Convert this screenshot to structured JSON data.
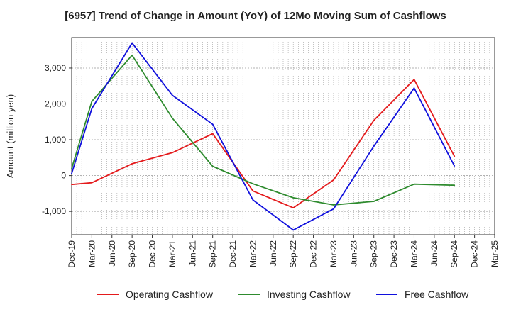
{
  "chart_data": {
    "type": "line",
    "title": "[6957]  Trend of Change in Amount (YoY) of 12Mo Moving Sum of Cashflows",
    "xlabel": "",
    "ylabel": "Amount (million yen)",
    "ylim": [
      -1650,
      3850
    ],
    "yticks": [
      -1000,
      0,
      1000,
      2000,
      3000
    ],
    "ytick_labels": [
      "-1,000",
      "0",
      "1,000",
      "2,000",
      "3,000"
    ],
    "categories": [
      "Dec-19",
      "Mar-20",
      "Jun-20",
      "Sep-20",
      "Dec-20",
      "Mar-21",
      "Jun-21",
      "Sep-21",
      "Dec-21",
      "Mar-22",
      "Jun-22",
      "Sep-22",
      "Dec-22",
      "Mar-23",
      "Jun-23",
      "Sep-23",
      "Dec-23",
      "Mar-24",
      "Jun-24",
      "Sep-24",
      "Dec-24",
      "Mar-25"
    ],
    "grid": true,
    "legend_position": "bottom",
    "series": [
      {
        "name": "Operating Cashflow",
        "color": "#e41a1c",
        "values": [
          -250,
          -200,
          null,
          330,
          null,
          640,
          null,
          1170,
          null,
          -430,
          null,
          -900,
          null,
          -120,
          null,
          1540,
          null,
          2680,
          null,
          540,
          null,
          null
        ]
      },
      {
        "name": "Investing Cashflow",
        "color": "#2e8b2e",
        "values": [
          200,
          2070,
          null,
          3360,
          null,
          1600,
          null,
          260,
          null,
          -230,
          null,
          -620,
          null,
          -820,
          null,
          -720,
          null,
          -240,
          null,
          -270,
          null,
          null
        ]
      },
      {
        "name": "Free Cashflow",
        "color": "#1010dd",
        "values": [
          60,
          1870,
          null,
          3700,
          null,
          2240,
          null,
          1430,
          null,
          -680,
          null,
          -1520,
          null,
          -930,
          null,
          820,
          null,
          2440,
          null,
          270,
          null,
          null
        ]
      }
    ]
  }
}
